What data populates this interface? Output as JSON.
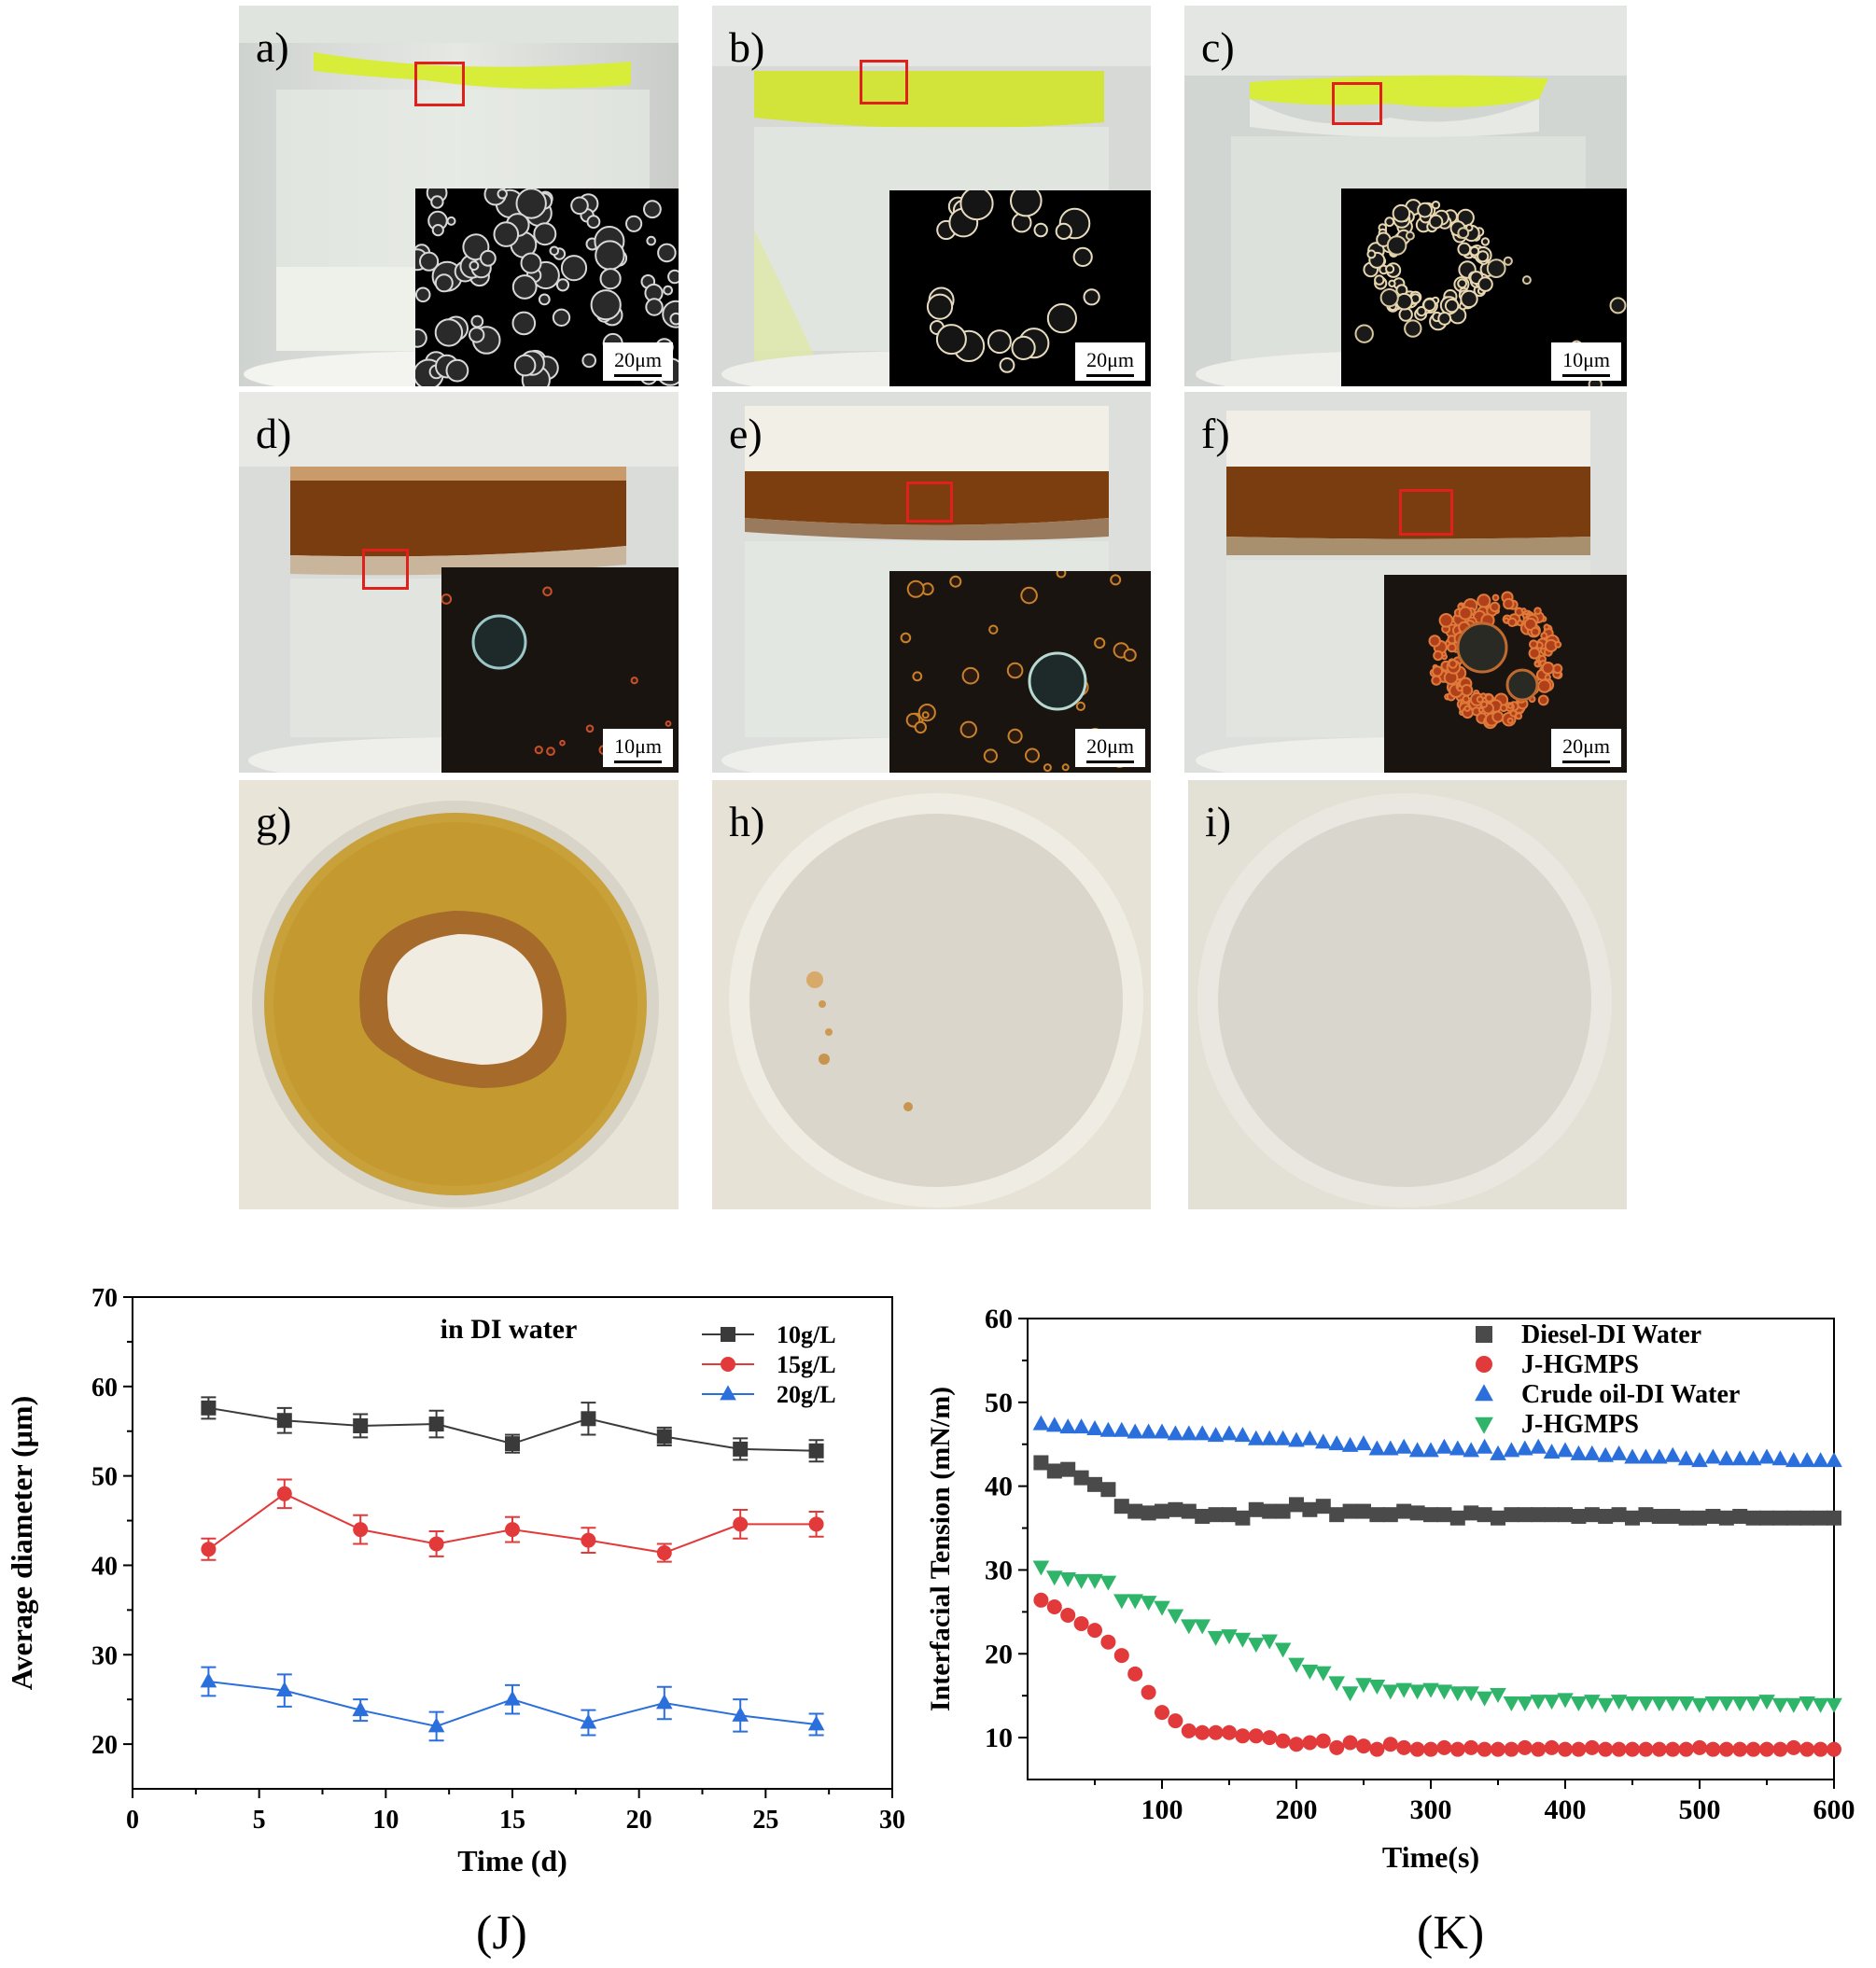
{
  "panels": {
    "a": {
      "label": "a)",
      "scale": "20μm"
    },
    "b": {
      "label": "b)",
      "scale": "20μm"
    },
    "c": {
      "label": "c)",
      "scale": "10μm"
    },
    "d": {
      "label": "d)",
      "scale": "10μm"
    },
    "e": {
      "label": "e)",
      "scale": "20μm"
    },
    "f": {
      "label": "f)",
      "scale": "20μm"
    },
    "g": {
      "label": "g)"
    },
    "h": {
      "label": "h)"
    },
    "i": {
      "label": "i)"
    }
  },
  "colors": {
    "yellow_layer": "#d8ec3a",
    "brown_layer": "#7a3d10",
    "series_black": "#3a3a3a",
    "series_red": "#e23a3a",
    "series_blue": "#2a6fdb",
    "series_green": "#2fb56a"
  },
  "captions": {
    "J": "(J)",
    "K": "(K)"
  },
  "chart_data": [
    {
      "type": "line",
      "annotation": "in DI water",
      "xlabel": "Time (d)",
      "ylabel": "Average diameter (μm)",
      "xlim": [
        0,
        30
      ],
      "ylim": [
        15,
        70
      ],
      "xticks": [
        0,
        5,
        10,
        15,
        20,
        25,
        30
      ],
      "yticks": [
        20,
        30,
        40,
        50,
        60,
        70
      ],
      "legend_position": "top-right",
      "x": [
        3,
        6,
        9,
        12,
        15,
        18,
        21,
        24,
        27
      ],
      "series": [
        {
          "name": "10g/L",
          "marker": "square",
          "color": "#3a3a3a",
          "values": [
            57.6,
            56.2,
            55.6,
            55.8,
            53.6,
            56.4,
            54.4,
            53.0,
            52.8
          ],
          "errors": [
            1.2,
            1.4,
            1.3,
            1.5,
            1.0,
            1.8,
            1.0,
            1.2,
            1.2
          ]
        },
        {
          "name": "15g/L",
          "marker": "circle",
          "color": "#e23a3a",
          "values": [
            41.8,
            48.0,
            44.0,
            42.4,
            44.0,
            42.8,
            41.4,
            44.6,
            44.6
          ],
          "errors": [
            1.2,
            1.6,
            1.6,
            1.4,
            1.4,
            1.4,
            1.0,
            1.6,
            1.4
          ]
        },
        {
          "name": "20g/L",
          "marker": "triangle",
          "color": "#2a6fdb",
          "values": [
            27.0,
            26.0,
            23.8,
            22.0,
            25.0,
            22.4,
            24.6,
            23.2,
            22.2
          ],
          "errors": [
            1.6,
            1.8,
            1.2,
            1.6,
            1.6,
            1.4,
            1.8,
            1.8,
            1.2
          ]
        }
      ]
    },
    {
      "type": "scatter",
      "xlabel": "Time(s)",
      "ylabel": "Interfacial Tension (mN/m)",
      "xlim": [
        0,
        600
      ],
      "ylim": [
        5,
        60
      ],
      "xticks": [
        100,
        200,
        300,
        400,
        500,
        600
      ],
      "yticks": [
        10,
        20,
        30,
        40,
        50,
        60
      ],
      "legend_position": "top-right",
      "series": [
        {
          "name": "Diesel-DI Water",
          "marker": "square",
          "color": "#4a4a4a",
          "x": [
            10,
            20,
            30,
            40,
            50,
            60,
            70,
            80,
            90,
            100,
            110,
            120,
            130,
            140,
            150,
            160,
            170,
            180,
            190,
            200,
            210,
            220,
            230,
            240,
            250,
            260,
            270,
            280,
            290,
            300,
            310,
            320,
            330,
            340,
            350,
            360,
            370,
            380,
            390,
            400,
            410,
            420,
            430,
            440,
            450,
            460,
            470,
            480,
            490,
            500,
            510,
            520,
            530,
            540,
            550,
            560,
            570,
            580,
            590,
            600
          ],
          "values": [
            42.8,
            41.8,
            42.0,
            41.0,
            40.2,
            39.6,
            37.6,
            37.0,
            36.8,
            37.0,
            37.2,
            37.0,
            36.4,
            36.6,
            36.6,
            36.2,
            37.2,
            37.0,
            37.0,
            37.8,
            37.2,
            37.6,
            36.6,
            37.0,
            37.0,
            36.6,
            36.6,
            37.0,
            36.8,
            36.6,
            36.6,
            36.2,
            36.8,
            36.6,
            36.2,
            36.6,
            36.6,
            36.6,
            36.6,
            36.6,
            36.4,
            36.6,
            36.4,
            36.6,
            36.2,
            36.6,
            36.4,
            36.4,
            36.2,
            36.2,
            36.4,
            36.2,
            36.4,
            36.2,
            36.2,
            36.2,
            36.2,
            36.2,
            36.2,
            36.2
          ]
        },
        {
          "name": "J-HGMPS",
          "marker": "circle",
          "color": "#e23a3a",
          "x": [
            10,
            20,
            30,
            40,
            50,
            60,
            70,
            80,
            90,
            100,
            110,
            120,
            130,
            140,
            150,
            160,
            170,
            180,
            190,
            200,
            210,
            220,
            230,
            240,
            250,
            260,
            270,
            280,
            290,
            300,
            310,
            320,
            330,
            340,
            350,
            360,
            370,
            380,
            390,
            400,
            410,
            420,
            430,
            440,
            450,
            460,
            470,
            480,
            490,
            500,
            510,
            520,
            530,
            540,
            550,
            560,
            570,
            580,
            590,
            600
          ],
          "values": [
            26.4,
            25.6,
            24.6,
            23.6,
            22.8,
            21.4,
            19.8,
            17.6,
            15.4,
            13.0,
            12.0,
            10.8,
            10.6,
            10.6,
            10.6,
            10.2,
            10.2,
            10.0,
            9.6,
            9.2,
            9.4,
            9.6,
            8.8,
            9.4,
            9.0,
            8.6,
            9.2,
            8.8,
            8.6,
            8.6,
            8.8,
            8.6,
            8.8,
            8.6,
            8.6,
            8.6,
            8.8,
            8.6,
            8.8,
            8.6,
            8.6,
            8.8,
            8.6,
            8.6,
            8.6,
            8.6,
            8.6,
            8.6,
            8.6,
            8.8,
            8.6,
            8.6,
            8.6,
            8.6,
            8.6,
            8.6,
            8.8,
            8.6,
            8.6,
            8.6
          ]
        },
        {
          "name": "Crude oil-DI Water",
          "marker": "triangle",
          "color": "#2a6fdb",
          "x": [
            10,
            20,
            30,
            40,
            50,
            60,
            70,
            80,
            90,
            100,
            110,
            120,
            130,
            140,
            150,
            160,
            170,
            180,
            190,
            200,
            210,
            220,
            230,
            240,
            250,
            260,
            270,
            280,
            290,
            300,
            310,
            320,
            330,
            340,
            350,
            360,
            370,
            380,
            390,
            400,
            410,
            420,
            430,
            440,
            450,
            460,
            470,
            480,
            490,
            500,
            510,
            520,
            530,
            540,
            550,
            560,
            570,
            580,
            590,
            600
          ],
          "values": [
            47.4,
            47.2,
            47.0,
            47.0,
            46.8,
            46.6,
            46.6,
            46.4,
            46.4,
            46.4,
            46.2,
            46.2,
            46.2,
            46.0,
            46.2,
            46.0,
            45.6,
            45.6,
            45.6,
            45.4,
            45.6,
            45.2,
            45.0,
            44.8,
            45.0,
            44.4,
            44.4,
            44.6,
            44.2,
            44.2,
            44.6,
            44.4,
            44.2,
            44.6,
            43.8,
            44.2,
            44.4,
            44.6,
            44.0,
            44.2,
            43.8,
            43.8,
            43.6,
            43.8,
            43.4,
            43.4,
            43.4,
            43.6,
            43.2,
            43.0,
            43.4,
            43.2,
            43.2,
            43.2,
            43.4,
            43.2,
            43.0,
            43.0,
            43.0,
            43.0
          ]
        },
        {
          "name": "J-HGMPS",
          "marker": "triangle-down",
          "color": "#2fb56a",
          "x": [
            10,
            20,
            30,
            40,
            50,
            60,
            70,
            80,
            90,
            100,
            110,
            120,
            130,
            140,
            150,
            160,
            170,
            180,
            190,
            200,
            210,
            220,
            230,
            240,
            250,
            260,
            270,
            280,
            290,
            300,
            310,
            320,
            330,
            340,
            350,
            360,
            370,
            380,
            390,
            400,
            410,
            420,
            430,
            440,
            450,
            460,
            470,
            480,
            490,
            500,
            510,
            520,
            530,
            540,
            550,
            560,
            570,
            580,
            590,
            600
          ],
          "values": [
            30.4,
            29.2,
            29.0,
            28.8,
            28.8,
            28.6,
            26.4,
            26.4,
            26.2,
            25.6,
            24.6,
            23.4,
            23.4,
            22.0,
            22.2,
            21.8,
            21.2,
            21.6,
            20.6,
            18.8,
            18.0,
            17.8,
            16.6,
            15.4,
            16.4,
            16.2,
            15.6,
            15.8,
            15.6,
            15.8,
            15.6,
            15.4,
            15.4,
            14.8,
            15.2,
            14.2,
            14.2,
            14.4,
            14.4,
            14.6,
            14.2,
            14.4,
            14.0,
            14.4,
            14.2,
            14.2,
            14.2,
            14.2,
            14.2,
            14.0,
            14.2,
            14.2,
            14.2,
            14.2,
            14.4,
            14.0,
            14.0,
            14.2,
            14.0,
            14.0
          ]
        }
      ]
    }
  ]
}
